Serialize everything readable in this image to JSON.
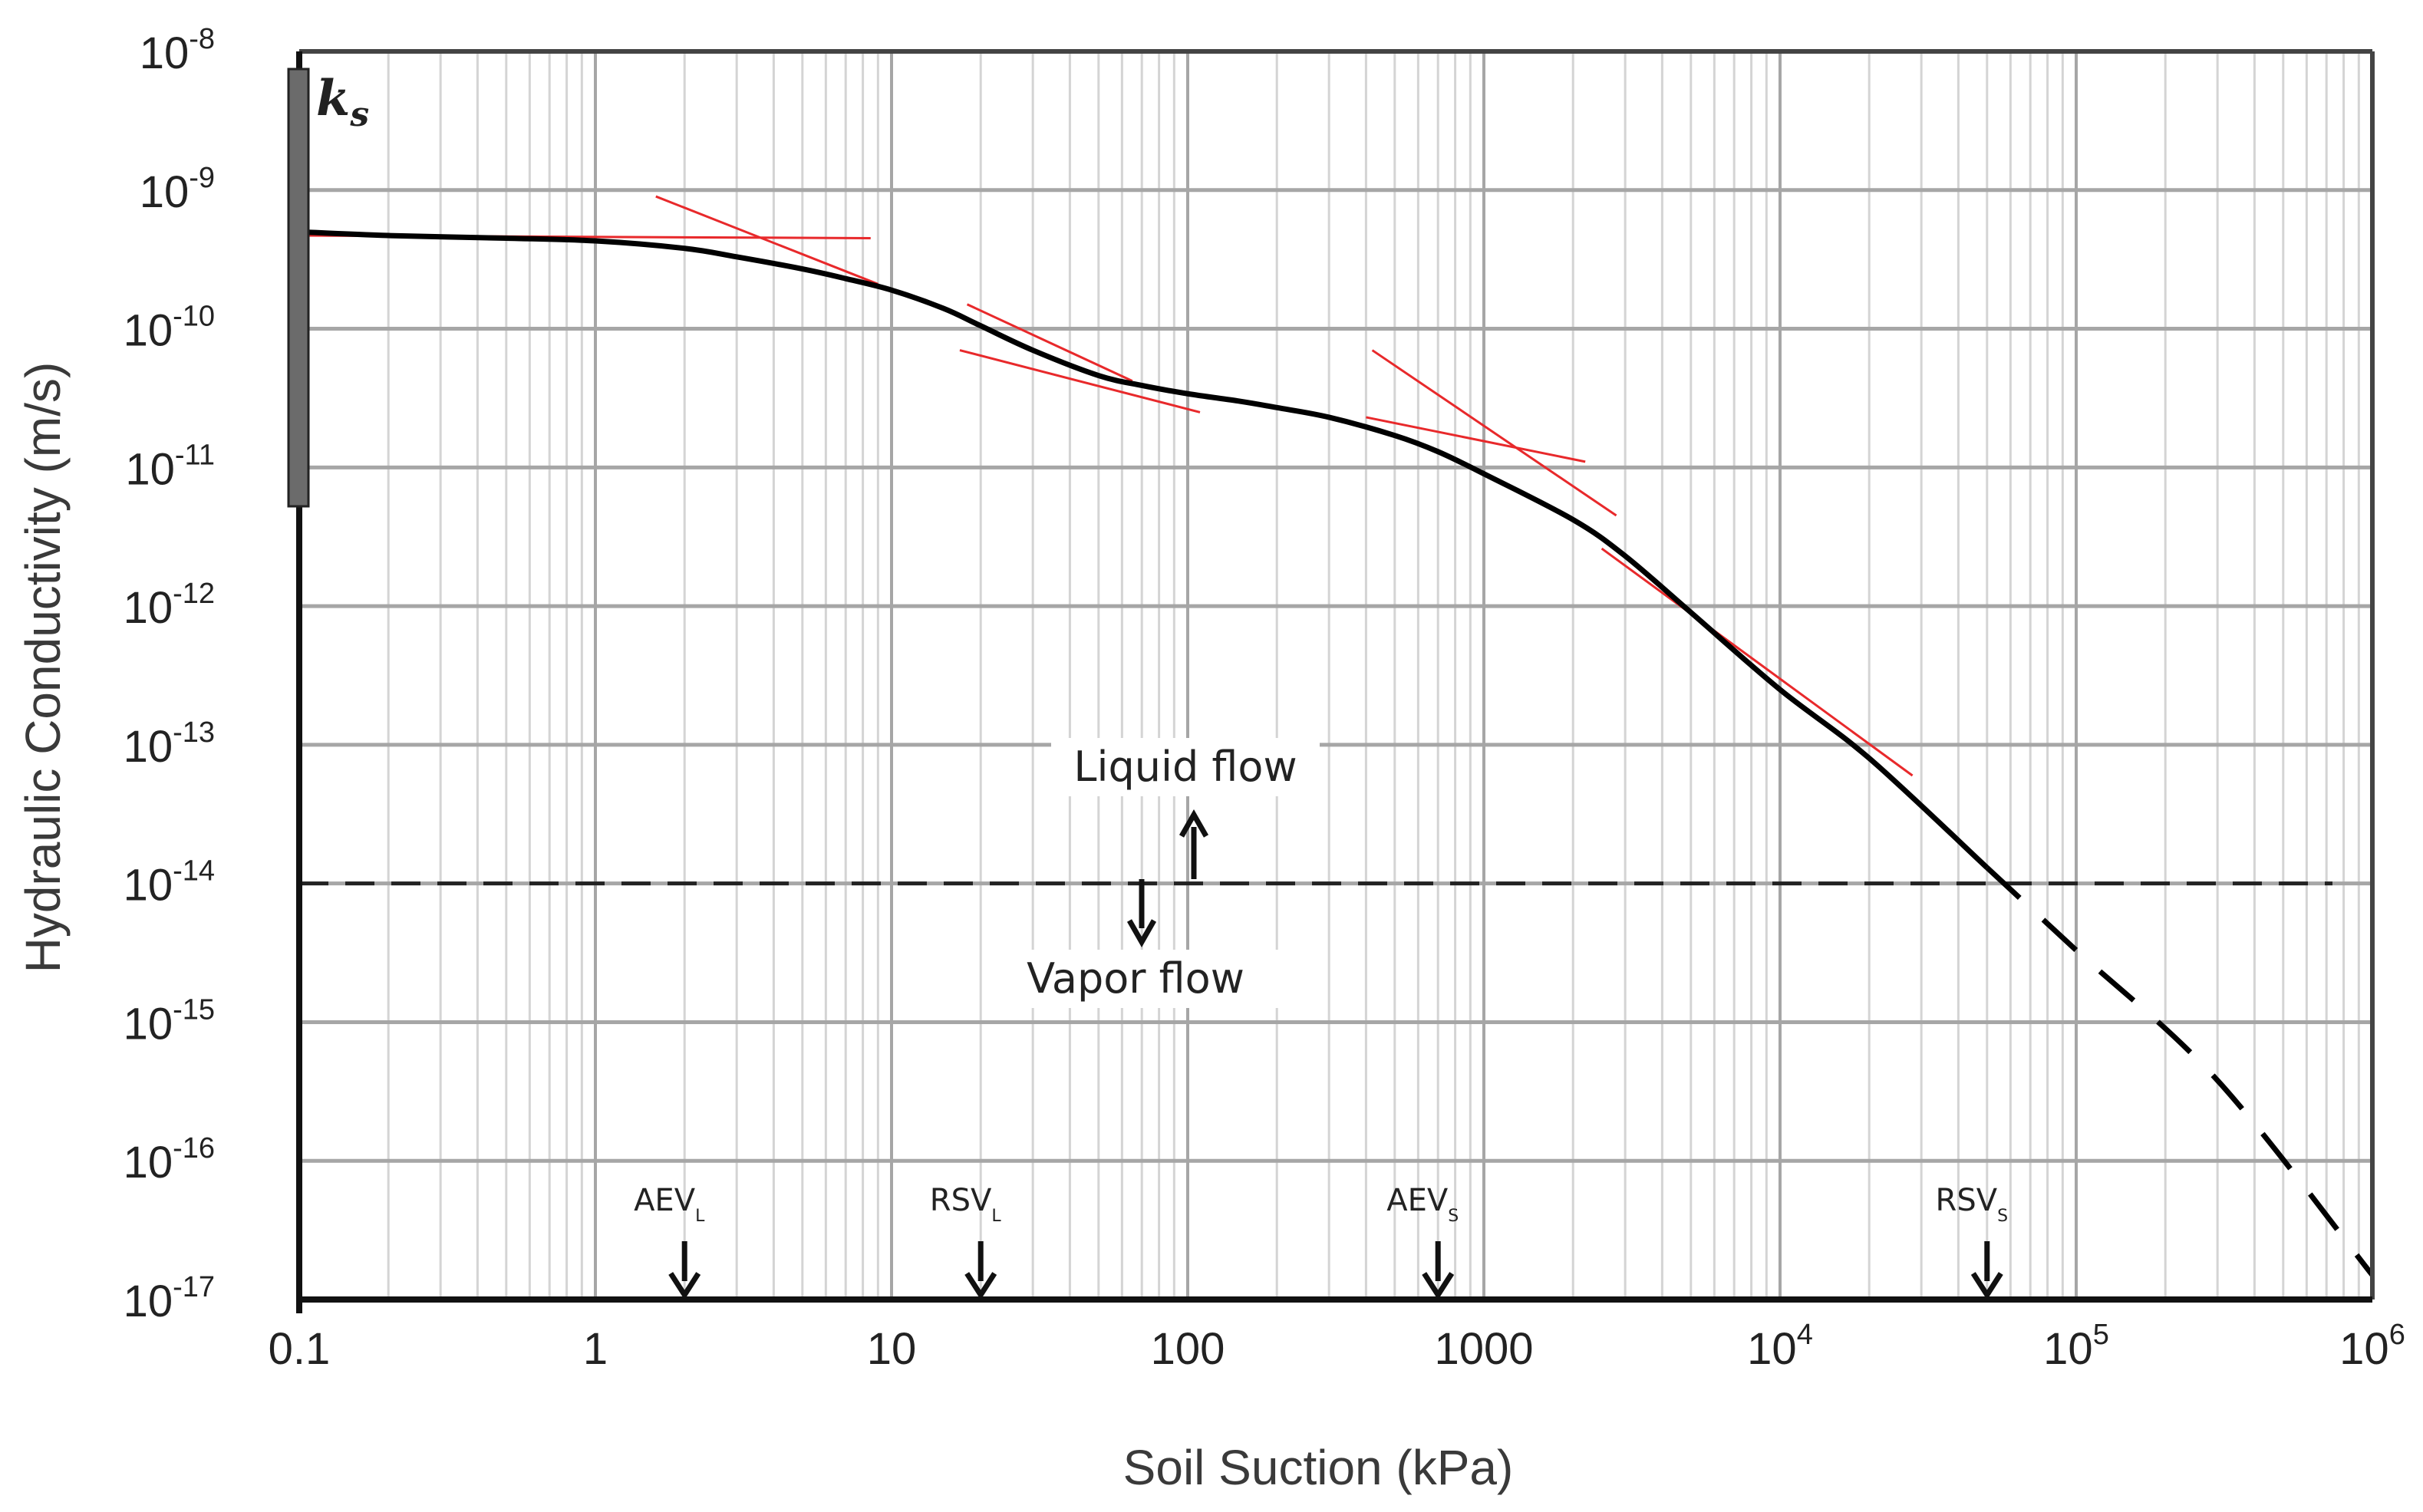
{
  "chart_data": {
    "type": "line",
    "xscale": "log",
    "yscale": "log",
    "xlabel": "Soil Suction (kPa)",
    "ylabel": "Hydraulic Conductivity (m/s)",
    "xlim": [
      0.1,
      1000000
    ],
    "ylim": [
      1e-17,
      1e-08
    ],
    "grid": true,
    "x_ticks": [
      {
        "value": 0.1,
        "label": "0.1",
        "sup": ""
      },
      {
        "value": 1,
        "label": "1",
        "sup": ""
      },
      {
        "value": 10,
        "label": "10",
        "sup": ""
      },
      {
        "value": 100,
        "label": "100",
        "sup": ""
      },
      {
        "value": 1000,
        "label": "1000",
        "sup": ""
      },
      {
        "value": 10000,
        "label": "10",
        "sup": "4"
      },
      {
        "value": 100000,
        "label": "10",
        "sup": "5"
      },
      {
        "value": 1000000,
        "label": "10",
        "sup": "6"
      }
    ],
    "y_ticks": [
      {
        "value": 1e-08,
        "label": "10",
        "sup": "-8"
      },
      {
        "value": 1e-09,
        "label": "10",
        "sup": "-9"
      },
      {
        "value": 1e-10,
        "label": "10",
        "sup": "-10"
      },
      {
        "value": 1e-11,
        "label": "10",
        "sup": "-11"
      },
      {
        "value": 1e-12,
        "label": "10",
        "sup": "-12"
      },
      {
        "value": 1e-13,
        "label": "10",
        "sup": "-13"
      },
      {
        "value": 1e-14,
        "label": "10",
        "sup": "-14"
      },
      {
        "value": 1e-15,
        "label": "10",
        "sup": "-15"
      },
      {
        "value": 1e-16,
        "label": "10",
        "sup": "-16"
      },
      {
        "value": 1e-17,
        "label": "10",
        "sup": "-17"
      }
    ],
    "series": [
      {
        "name": "hydraulic-conductivity-curve",
        "color": "#000000",
        "style": "solid",
        "x": [
          0.1,
          0.2,
          0.5,
          1,
          2,
          3,
          5,
          7,
          10,
          15,
          20,
          30,
          50,
          70,
          100,
          150,
          200,
          300,
          500,
          700,
          1000,
          2000,
          3000,
          5000,
          10000,
          20000,
          50000
        ],
        "y": [
          5e-10,
          4.7e-10,
          4.5e-10,
          4.3e-10,
          3.8e-10,
          3.3e-10,
          2.7e-10,
          2.3e-10,
          1.9e-10,
          1.4e-10,
          1.05e-10,
          7e-11,
          4.6e-11,
          3.9e-11,
          3.4e-11,
          3e-11,
          2.7e-11,
          2.3e-11,
          1.7e-11,
          1.3e-11,
          9e-12,
          4.2e-12,
          2.3e-12,
          9e-13,
          2.5e-13,
          8e-14,
          1.3e-14
        ]
      },
      {
        "name": "vapor-extension",
        "color": "#000000",
        "style": "dashed",
        "x": [
          50000,
          100000,
          300000,
          1000000
        ],
        "y": [
          1.3e-14,
          3.3e-15,
          3.8e-16,
          1.5e-17
        ]
      }
    ],
    "tangent_lines": [
      {
        "x": [
          0.1,
          8.5
        ],
        "y": [
          4.7e-10,
          4.5e-10
        ]
      },
      {
        "x": [
          1.6,
          9
        ],
        "y": [
          9e-10,
          2.1e-10
        ]
      },
      {
        "x": [
          17,
          110
        ],
        "y": [
          7e-11,
          2.5e-11
        ]
      },
      {
        "x": [
          18,
          65
        ],
        "y": [
          1.5e-10,
          4.2e-11
        ]
      },
      {
        "x": [
          400,
          2200
        ],
        "y": [
          2.3e-11,
          1.1e-11
        ]
      },
      {
        "x": [
          420,
          2800
        ],
        "y": [
          7e-11,
          4.5e-12
        ]
      },
      {
        "x": [
          2500,
          28000
        ],
        "y": [
          2.6e-12,
          6e-14
        ]
      }
    ],
    "threshold_line": {
      "y": 1e-14,
      "style": "dashed"
    },
    "annotations": {
      "liquid_flow": "Liquid flow",
      "vapor_flow": "Vapor flow",
      "ks": "k",
      "ks_sub": "s"
    },
    "markers": [
      {
        "x": 2,
        "label": "AEV",
        "sub": "L"
      },
      {
        "x": 20,
        "label": "RSV",
        "sub": "L"
      },
      {
        "x": 700,
        "label": "AEV",
        "sub": "S"
      },
      {
        "x": 50000,
        "label": "RSV",
        "sub": "S"
      }
    ],
    "colors": {
      "curve": "#000000",
      "tangent": "#e8292b",
      "grid_major": "#a6a6a6",
      "grid_minor": "#d4d4d4",
      "ks_bar": "#6b6b6b"
    }
  }
}
